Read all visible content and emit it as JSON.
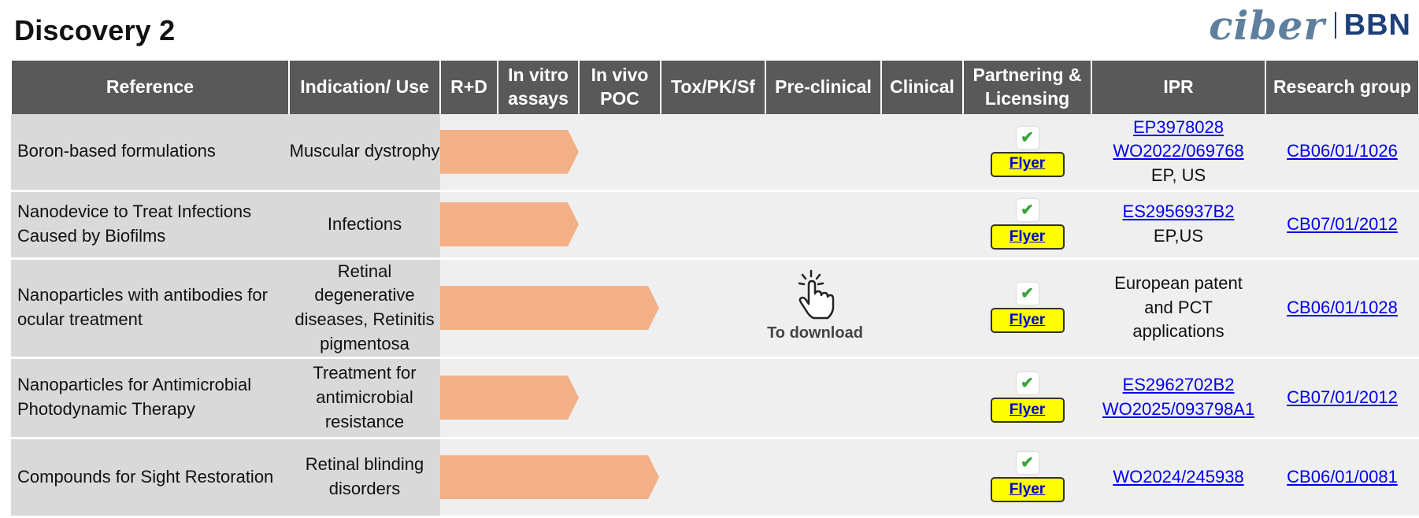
{
  "page": {
    "title": "Discovery 2",
    "logo": {
      "left": "ciber",
      "right": "BBN"
    }
  },
  "table": {
    "headers": [
      "Reference",
      "Indication/ Use",
      "R+D",
      "In vitro assays",
      "In vivo POC",
      "Tox/PK/Sf",
      "Pre-clinical",
      "Clinical",
      "Partnering & Licensing",
      "IPR",
      "Research group"
    ],
    "rows": [
      {
        "reference": "Boron-based formulations",
        "indication": "Muscular dystrophy",
        "progress_stages": 2,
        "flyer": "Flyer",
        "ipr_links": [
          "EP3978028",
          "WO2022/069768"
        ],
        "ipr_text": [
          "EP, US"
        ],
        "group": "CB06/01/1026"
      },
      {
        "reference": "Nanodevice to Treat Infections Caused by Biofilms",
        "indication": "Infections",
        "progress_stages": 2,
        "flyer": "Flyer",
        "ipr_links": [
          "ES2956937B2"
        ],
        "ipr_text": [
          "EP,US"
        ],
        "group": "CB07/01/2012"
      },
      {
        "reference": "Nanoparticles with antibodies for ocular treatment",
        "indication": "Retinal degenerative diseases, Retinitis pigmentosa",
        "progress_stages": 3,
        "flyer": "Flyer",
        "ipr_links": [],
        "ipr_text": [
          "European patent",
          "and PCT",
          "applications"
        ],
        "group": "CB06/01/1028"
      },
      {
        "reference": "Nanoparticles for Antimicrobial  Photodynamic Therapy",
        "indication": "Treatment for antimicrobial resistance",
        "progress_stages": 2,
        "flyer": "Flyer",
        "ipr_links": [
          "ES2962702B2",
          "WO2025/093798A1"
        ],
        "ipr_text": [],
        "group": "CB07/01/2012"
      },
      {
        "reference": "Compounds for Sight Restoration",
        "indication": "Retinal blinding disorders",
        "progress_stages": 3,
        "flyer": "Flyer",
        "ipr_links": [
          "WO2024/245938"
        ],
        "ipr_text": [],
        "group": "CB06/01/0081"
      }
    ]
  },
  "download": {
    "label": "To download",
    "icon": "hand-pointer-icon"
  },
  "colors": {
    "header_bg": "#595959",
    "label_cell_bg": "#d9d9d9",
    "progress_arrow": "#f3b087",
    "flyer_bg": "#ffff00",
    "link": "#0000ee",
    "logo_blue": "#1e3f7a"
  }
}
